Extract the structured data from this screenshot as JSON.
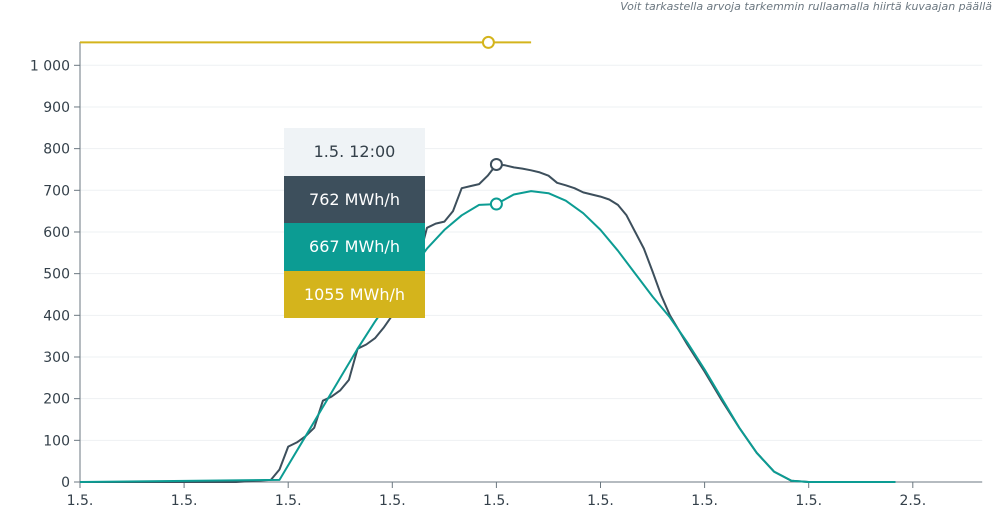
{
  "hint": "Voit tarkastella arvoja tarkemmin rullaamalla hiirtä kuvaajan päällä",
  "chart_data": {
    "type": "line",
    "x_tick_labels": [
      "1.5.",
      "1.5.",
      "1.5.",
      "1.5.",
      "1.5.",
      "1.5.",
      "1.5.",
      "1.5.",
      "2.5."
    ],
    "x_tick_hours": [
      0,
      3,
      6,
      9,
      12,
      15,
      18,
      21,
      24
    ],
    "y_ticks": [
      0,
      100,
      200,
      300,
      400,
      500,
      600,
      700,
      800,
      900,
      1000
    ],
    "y_tick_labels": [
      "0",
      "100",
      "200",
      "300",
      "400",
      "500",
      "600",
      "700",
      "800",
      "900",
      "1 000"
    ],
    "ylim": [
      0,
      1060
    ],
    "xlim_hours": [
      0,
      26
    ],
    "colors": {
      "series_dark": "#3d4f5c",
      "series_teal": "#0c9c93",
      "series_gold": "#d4b41c"
    },
    "series": [
      {
        "color": "#3d4f5c",
        "x": [
          0,
          4.5,
          5.5,
          5.75,
          6.0,
          6.25,
          6.5,
          6.75,
          7.0,
          7.25,
          7.5,
          7.75,
          8.0,
          8.25,
          8.5,
          8.75,
          9.0,
          9.25,
          9.5,
          9.75,
          10.0,
          10.25,
          10.5,
          10.75,
          11.0,
          11.25,
          11.5,
          11.75,
          12.0,
          12.25,
          12.5,
          12.75,
          13.0,
          13.25,
          13.5,
          13.75,
          14.0,
          14.25,
          14.5,
          14.75,
          15.0,
          15.25,
          15.5,
          15.75,
          16.0,
          16.25,
          16.5,
          16.75,
          17.0,
          17.5,
          18.0,
          18.5,
          19.0,
          19.5,
          20.0,
          20.5,
          21.0,
          21.5,
          22.0,
          23.5
        ],
        "values": [
          0,
          0,
          5,
          30,
          85,
          95,
          110,
          130,
          195,
          205,
          220,
          245,
          320,
          330,
          345,
          370,
          400,
          430,
          470,
          530,
          610,
          620,
          625,
          650,
          705,
          710,
          715,
          735,
          762,
          760,
          755,
          752,
          748,
          743,
          735,
          718,
          712,
          705,
          695,
          690,
          685,
          678,
          665,
          640,
          600,
          560,
          505,
          448,
          400,
          330,
          265,
          195,
          130,
          70,
          25,
          3,
          0,
          0,
          0,
          0
        ]
      },
      {
        "color": "#0c9c93",
        "x": [
          0,
          5.75,
          6.0,
          6.5,
          7.0,
          7.5,
          8.0,
          8.5,
          9.0,
          9.5,
          10.0,
          10.5,
          11.0,
          11.5,
          12.0,
          12.5,
          13.0,
          13.5,
          14.0,
          14.5,
          15.0,
          15.5,
          16.0,
          16.5,
          17.0,
          17.5,
          18.0,
          18.5,
          19.0,
          19.5,
          20.0,
          20.5,
          21.0,
          21.25,
          21.5,
          22.0,
          23.5
        ],
        "values": [
          0,
          5,
          40,
          110,
          180,
          250,
          320,
          385,
          445,
          505,
          560,
          605,
          640,
          665,
          667,
          690,
          698,
          693,
          675,
          645,
          605,
          555,
          500,
          445,
          395,
          335,
          270,
          200,
          130,
          70,
          25,
          3,
          0,
          0,
          0,
          0,
          0
        ]
      },
      {
        "color": "#d4b41c",
        "x": [
          0,
          13.0
        ],
        "values": [
          1055,
          1055
        ]
      }
    ],
    "hover": {
      "x_hour": 12.0,
      "dark_value": 762,
      "teal_value": 667,
      "gold_value": 1055
    }
  },
  "tooltip": {
    "time": "1.5. 12:00",
    "dark": "762 MWh/h",
    "teal": "667 MWh/h",
    "gold": "1055 MWh/h"
  }
}
